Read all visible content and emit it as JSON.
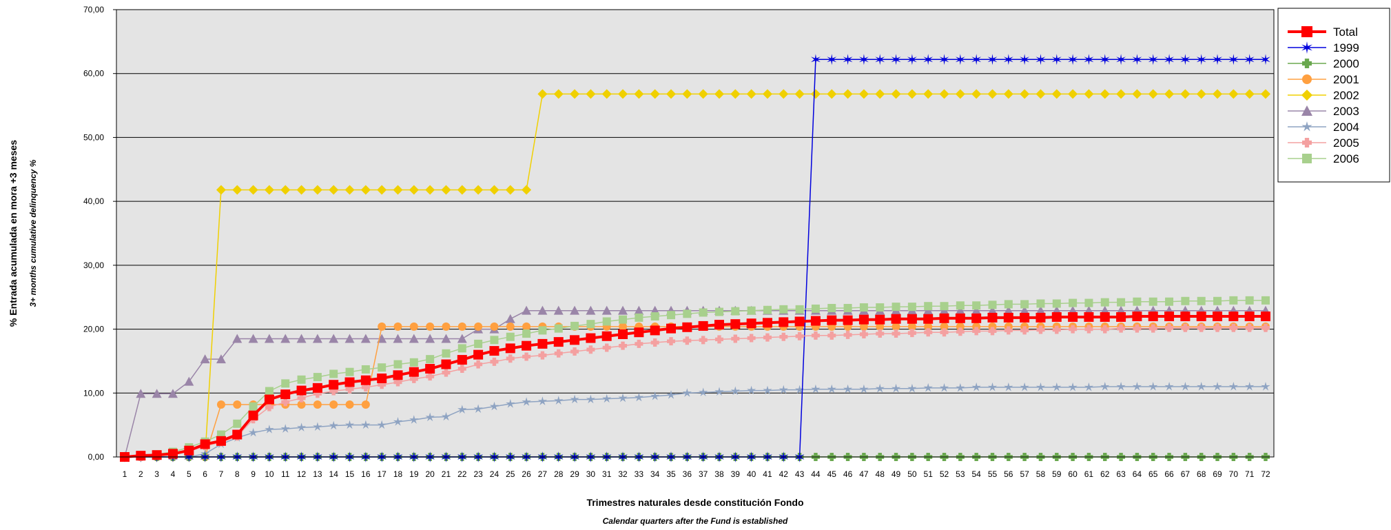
{
  "chart_data": {
    "type": "line",
    "xlabel": "Trimestres naturales desde constitución Fondo",
    "xlabel_en": "Calendar quarters after the Fund is established",
    "ylabel": "% Entrada acumulada en mora +3 meses",
    "ylabel_en": "3+ months cumulative delinquency %",
    "ylim": [
      0,
      70
    ],
    "yticks": [
      0,
      10,
      20,
      30,
      40,
      50,
      60,
      70
    ],
    "ytick_labels": [
      "0,00",
      "10,00",
      "20,00",
      "30,00",
      "40,00",
      "50,00",
      "60,00",
      "70,00"
    ],
    "x": [
      1,
      2,
      3,
      4,
      5,
      6,
      7,
      8,
      9,
      10,
      11,
      12,
      13,
      14,
      15,
      16,
      17,
      18,
      19,
      20,
      21,
      22,
      23,
      24,
      25,
      26,
      27,
      28,
      29,
      30,
      31,
      32,
      33,
      34,
      35,
      36,
      37,
      38,
      39,
      40,
      41,
      42,
      43,
      44,
      45,
      46,
      47,
      48,
      49,
      50,
      51,
      52,
      53,
      54,
      55,
      56,
      57,
      58,
      59,
      60,
      61,
      62,
      63,
      64,
      65,
      66,
      67,
      68,
      69,
      70,
      71,
      72
    ],
    "grid": true,
    "legend_position": "right",
    "series": [
      {
        "name": "Total",
        "color": "#ff0000",
        "marker": "square",
        "width": 4,
        "values": [
          0,
          0.2,
          0.3,
          0.5,
          1.0,
          2.0,
          2.5,
          3.5,
          6.5,
          9.0,
          9.8,
          10.4,
          10.8,
          11.3,
          11.7,
          12.0,
          12.3,
          12.8,
          13.3,
          13.8,
          14.5,
          15.2,
          16.0,
          16.6,
          17.0,
          17.4,
          17.7,
          18.0,
          18.3,
          18.6,
          18.9,
          19.2,
          19.5,
          19.8,
          20.1,
          20.3,
          20.5,
          20.7,
          20.8,
          20.9,
          21.0,
          21.1,
          21.2,
          21.3,
          21.4,
          21.4,
          21.5,
          21.5,
          21.6,
          21.6,
          21.6,
          21.7,
          21.7,
          21.7,
          21.8,
          21.8,
          21.8,
          21.8,
          21.9,
          21.9,
          21.9,
          21.9,
          21.9,
          22.0,
          22.0,
          22.0,
          22.0,
          22.0,
          22.0,
          22.0,
          22.0,
          22.0
        ]
      },
      {
        "name": "1999",
        "color": "#0000dd",
        "marker": "star6",
        "width": 1.5,
        "values": [
          0,
          0,
          0,
          0,
          0,
          0,
          0,
          0,
          0,
          0,
          0,
          0,
          0,
          0,
          0,
          0,
          0,
          0,
          0,
          0,
          0,
          0,
          0,
          0,
          0,
          0,
          0,
          0,
          0,
          0,
          0,
          0,
          0,
          0,
          0,
          0,
          0,
          0,
          0,
          0,
          0,
          0,
          0,
          62.2,
          62.2,
          62.2,
          62.2,
          62.2,
          62.2,
          62.2,
          62.2,
          62.2,
          62.2,
          62.2,
          62.2,
          62.2,
          62.2,
          62.2,
          62.2,
          62.2,
          62.2,
          62.2,
          62.2,
          62.2,
          62.2,
          62.2,
          62.2,
          62.2,
          62.2,
          62.2,
          62.2,
          62.2
        ]
      },
      {
        "name": "2000",
        "color": "#6aa84f",
        "marker": "plus",
        "width": 1.5,
        "values": [
          0,
          0,
          0,
          0,
          0,
          0,
          0,
          0,
          0,
          0,
          0,
          0,
          0,
          0,
          0,
          0,
          0,
          0,
          0,
          0,
          0,
          0,
          0,
          0,
          0,
          0,
          0,
          0,
          0,
          0,
          0,
          0,
          0,
          0,
          0,
          0,
          0,
          0,
          0,
          0,
          0,
          0,
          0,
          0,
          0,
          0,
          0,
          0,
          0,
          0,
          0,
          0,
          0,
          0,
          0,
          0,
          0,
          0,
          0,
          0,
          0,
          0,
          0,
          0,
          0,
          0,
          0,
          0,
          0,
          0,
          0,
          0
        ]
      },
      {
        "name": "2001",
        "color": "#ffa040",
        "marker": "circle",
        "width": 1.5,
        "values": [
          0,
          0,
          0,
          0,
          0,
          0,
          8.2,
          8.2,
          8.2,
          8.2,
          8.2,
          8.2,
          8.2,
          8.2,
          8.2,
          8.2,
          20.4,
          20.4,
          20.4,
          20.4,
          20.4,
          20.4,
          20.4,
          20.4,
          20.4,
          20.4,
          20.4,
          20.4,
          20.4,
          20.4,
          20.4,
          20.4,
          20.4,
          20.4,
          20.4,
          20.4,
          20.4,
          20.4,
          20.4,
          20.4,
          20.4,
          20.4,
          20.4,
          20.4,
          20.4,
          20.4,
          20.4,
          20.4,
          20.4,
          20.4,
          20.4,
          20.4,
          20.4,
          20.4,
          20.4,
          20.4,
          20.4,
          20.4,
          20.4,
          20.4,
          20.4,
          20.4,
          20.4,
          20.4,
          20.4,
          20.4,
          20.4,
          20.4,
          20.4,
          20.4,
          20.4,
          20.4
        ]
      },
      {
        "name": "2002",
        "color": "#f0d000",
        "marker": "diamond",
        "width": 1.5,
        "values": [
          0,
          0,
          0,
          0,
          0,
          0,
          41.8,
          41.8,
          41.8,
          41.8,
          41.8,
          41.8,
          41.8,
          41.8,
          41.8,
          41.8,
          41.8,
          41.8,
          41.8,
          41.8,
          41.8,
          41.8,
          41.8,
          41.8,
          41.8,
          41.8,
          56.8,
          56.8,
          56.8,
          56.8,
          56.8,
          56.8,
          56.8,
          56.8,
          56.8,
          56.8,
          56.8,
          56.8,
          56.8,
          56.8,
          56.8,
          56.8,
          56.8,
          56.8,
          56.8,
          56.8,
          56.8,
          56.8,
          56.8,
          56.8,
          56.8,
          56.8,
          56.8,
          56.8,
          56.8,
          56.8,
          56.8,
          56.8,
          56.8,
          56.8,
          56.8,
          56.8,
          56.8,
          56.8,
          56.8,
          56.8,
          56.8,
          56.8,
          56.8,
          56.8,
          56.8,
          56.8
        ]
      },
      {
        "name": "2003",
        "color": "#9a85a8",
        "marker": "triangle",
        "width": 1.5,
        "values": [
          0,
          9.9,
          9.9,
          9.9,
          11.8,
          15.3,
          15.3,
          18.5,
          18.5,
          18.5,
          18.5,
          18.5,
          18.5,
          18.5,
          18.5,
          18.5,
          18.5,
          18.5,
          18.5,
          18.5,
          18.5,
          18.5,
          20.0,
          20.0,
          21.6,
          22.9,
          22.9,
          22.9,
          22.9,
          22.9,
          22.9,
          22.9,
          22.9,
          22.9,
          22.9,
          22.9,
          22.9,
          22.9,
          22.9,
          22.9,
          22.9,
          22.9,
          22.9,
          22.9,
          22.9,
          22.9,
          22.9,
          22.9,
          22.9,
          22.9,
          22.9,
          22.9,
          22.9,
          22.9,
          22.9,
          22.9,
          22.9,
          22.9,
          22.9,
          22.9,
          22.9,
          22.9,
          22.9,
          22.9,
          22.9,
          22.9,
          22.9,
          22.9,
          22.9,
          22.9,
          22.9,
          22.9
        ]
      },
      {
        "name": "2004",
        "color": "#8ea3c2",
        "marker": "star5",
        "width": 1.5,
        "values": [
          0,
          0,
          0,
          0,
          0,
          0.5,
          2.0,
          3.0,
          3.8,
          4.3,
          4.4,
          4.6,
          4.7,
          4.9,
          5.0,
          5.0,
          5.0,
          5.5,
          5.8,
          6.2,
          6.3,
          7.4,
          7.5,
          7.9,
          8.3,
          8.6,
          8.7,
          8.8,
          9.0,
          9.0,
          9.1,
          9.2,
          9.3,
          9.5,
          9.7,
          10.0,
          10.1,
          10.2,
          10.3,
          10.4,
          10.4,
          10.5,
          10.5,
          10.6,
          10.6,
          10.6,
          10.6,
          10.7,
          10.7,
          10.7,
          10.8,
          10.8,
          10.8,
          10.9,
          10.9,
          10.9,
          10.9,
          10.9,
          10.9,
          10.9,
          10.9,
          11.0,
          11.0,
          11.0,
          11.0,
          11.0,
          11.0,
          11.0,
          11.0,
          11.0,
          11.0,
          11.0
        ]
      },
      {
        "name": "2005",
        "color": "#f4a0a0",
        "marker": "plus",
        "width": 1.5,
        "values": [
          0,
          0,
          0.2,
          0.4,
          0.9,
          1.7,
          2.3,
          3.2,
          5.9,
          7.8,
          8.6,
          9.2,
          9.9,
          10.3,
          10.6,
          10.9,
          11.3,
          11.7,
          12.2,
          12.6,
          13.2,
          13.8,
          14.5,
          14.9,
          15.4,
          15.7,
          15.9,
          16.2,
          16.5,
          16.8,
          17.1,
          17.4,
          17.7,
          17.9,
          18.1,
          18.2,
          18.3,
          18.4,
          18.5,
          18.6,
          18.7,
          18.8,
          18.9,
          19.0,
          19.0,
          19.1,
          19.2,
          19.3,
          19.3,
          19.4,
          19.5,
          19.5,
          19.6,
          19.7,
          19.7,
          19.8,
          19.8,
          19.9,
          19.9,
          20.0,
          20.0,
          20.0,
          20.1,
          20.1,
          20.1,
          20.2,
          20.2,
          20.2,
          20.2,
          20.2,
          20.2,
          20.2
        ]
      },
      {
        "name": "2006",
        "color": "#a8d08d",
        "marker": "square",
        "width": 1.5,
        "values": [
          0,
          0.1,
          0.4,
          0.8,
          1.5,
          2.4,
          3.5,
          5.2,
          7.9,
          10.3,
          11.5,
          12.1,
          12.5,
          13.0,
          13.3,
          13.7,
          14.0,
          14.5,
          14.8,
          15.3,
          16.2,
          17.0,
          17.7,
          18.3,
          18.8,
          19.3,
          19.8,
          20.1,
          20.5,
          20.8,
          21.2,
          21.5,
          21.8,
          22.0,
          22.2,
          22.4,
          22.6,
          22.7,
          22.8,
          22.9,
          23.0,
          23.1,
          23.1,
          23.2,
          23.3,
          23.3,
          23.4,
          23.4,
          23.5,
          23.5,
          23.6,
          23.6,
          23.7,
          23.7,
          23.8,
          23.9,
          23.9,
          24.0,
          24.0,
          24.1,
          24.1,
          24.2,
          24.2,
          24.3,
          24.3,
          24.3,
          24.4,
          24.4,
          24.4,
          24.5,
          24.5,
          24.5
        ]
      }
    ]
  }
}
